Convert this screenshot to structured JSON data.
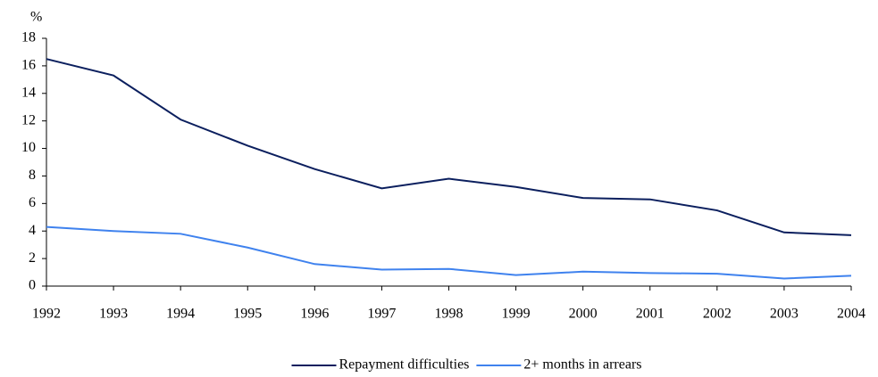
{
  "chart_data": {
    "type": "line",
    "y_axis_label": "%",
    "x": [
      1992,
      1993,
      1994,
      1995,
      1996,
      1997,
      1998,
      1999,
      2000,
      2001,
      2002,
      2003,
      2004
    ],
    "series": [
      {
        "name": "Repayment difficulties",
        "color": "#0b1f5e",
        "values": [
          16.5,
          15.3,
          12.1,
          10.2,
          8.5,
          7.1,
          7.8,
          7.2,
          6.4,
          6.3,
          5.5,
          3.9,
          3.7
        ]
      },
      {
        "name": "2+ months in arrears",
        "color": "#3f82ee",
        "values": [
          4.3,
          4.0,
          3.8,
          2.8,
          1.6,
          1.2,
          1.25,
          0.8,
          1.05,
          0.95,
          0.9,
          0.55,
          0.75
        ]
      }
    ],
    "xlim": [
      1992,
      2004
    ],
    "xticks": [
      1992,
      1993,
      1994,
      1995,
      1996,
      1997,
      1998,
      1999,
      2000,
      2001,
      2002,
      2003,
      2004
    ],
    "ylim": [
      0,
      18
    ],
    "yticks": [
      0,
      2,
      4,
      6,
      8,
      10,
      12,
      14,
      16,
      18
    ],
    "grid": false,
    "legend": "bottom"
  }
}
